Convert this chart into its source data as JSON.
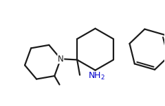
{
  "background_color": "#ffffff",
  "line_color": "#1a1a1a",
  "line_width": 1.6,
  "n_color": "#1a1a1a",
  "nh2_color": "#0000cc",
  "fig_width": 2.4,
  "fig_height": 1.55,
  "dpi": 100
}
